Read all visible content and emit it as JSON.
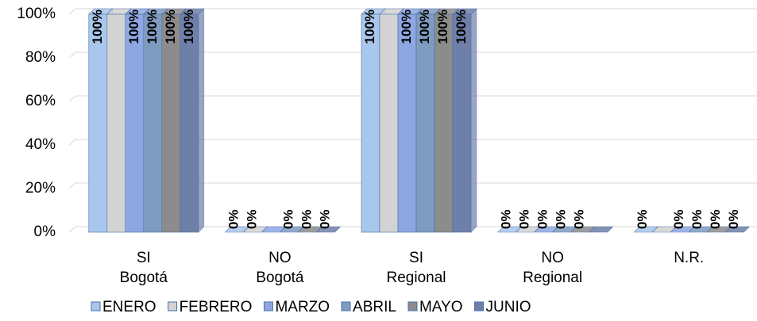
{
  "chart_data": {
    "type": "bar",
    "categories": [
      [
        "SI",
        "Bogotá"
      ],
      [
        "NO",
        "Bogotá"
      ],
      [
        "SI",
        "Regional"
      ],
      [
        "NO",
        "Regional"
      ],
      [
        "N.R."
      ]
    ],
    "series": [
      {
        "name": "ENERO",
        "color": "#a9c6ec",
        "values": [
          100,
          0,
          100,
          0,
          0
        ],
        "value_labels": [
          "100%",
          "0%",
          "100%",
          "0%",
          "0%"
        ]
      },
      {
        "name": "FEBRERO",
        "color": "#d3d3d3",
        "values": [
          100,
          0,
          100,
          0,
          0
        ],
        "value_labels": [
          null,
          "0%",
          null,
          "0%",
          null
        ]
      },
      {
        "name": "MARZO",
        "color": "#8ea7e3",
        "values": [
          100,
          0,
          100,
          0,
          0
        ],
        "value_labels": [
          "100%",
          null,
          "100%",
          "0%",
          "0%"
        ]
      },
      {
        "name": "ABRIL",
        "color": "#7f9bbf",
        "values": [
          100,
          0,
          100,
          0,
          0
        ],
        "value_labels": [
          "100%",
          "0%",
          "100%",
          "0%",
          "0%"
        ]
      },
      {
        "name": "MAYO",
        "color": "#8c8c8c",
        "values": [
          100,
          0,
          100,
          0,
          0
        ],
        "value_labels": [
          "100%",
          "0%",
          "100%",
          "0%",
          "0%"
        ]
      },
      {
        "name": "JUNIO",
        "color": "#6e7fa9",
        "values": [
          100,
          0,
          100,
          0,
          0
        ],
        "value_labels": [
          "100%",
          "0%",
          "100%",
          null,
          "0%"
        ]
      }
    ],
    "ylim": [
      0,
      100
    ],
    "yticks": [
      {
        "value": 0,
        "label": "0%"
      },
      {
        "value": 20,
        "label": "20%"
      },
      {
        "value": 40,
        "label": "40%"
      },
      {
        "value": 60,
        "label": "60%"
      },
      {
        "value": 80,
        "label": "80%"
      },
      {
        "value": 100,
        "label": "100%"
      }
    ],
    "grid": true,
    "legend": "bottom"
  }
}
